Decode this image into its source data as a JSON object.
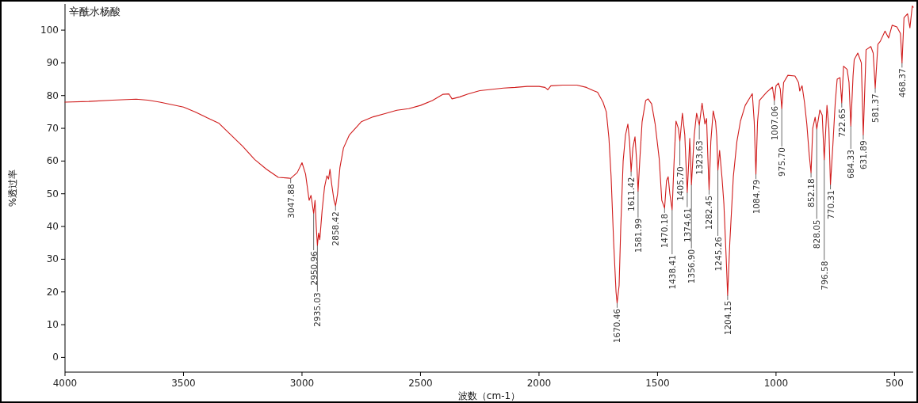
{
  "chart_data": {
    "type": "line",
    "title": "辛酰水杨酸",
    "xlabel": "波数（cm-1）",
    "ylabel": "%透过率",
    "color": "#d01c1c",
    "xlim": [
      4000,
      421
    ],
    "ylim": [
      -4.5,
      108
    ],
    "xticks": [
      4000,
      3500,
      3000,
      2500,
      2000,
      1500,
      1000,
      500
    ],
    "yticks": [
      0,
      10,
      20,
      30,
      40,
      50,
      60,
      70,
      80,
      90,
      100
    ],
    "x": [
      4000,
      3900,
      3800,
      3700,
      3650,
      3600,
      3500,
      3450,
      3400,
      3350,
      3300,
      3250,
      3200,
      3150,
      3100,
      3060,
      3047.88,
      3020,
      3000,
      2985,
      2970,
      2962,
      2955,
      2950.96,
      2945,
      2940,
      2935.03,
      2930,
      2925,
      2915,
      2905,
      2895,
      2888,
      2882,
      2875,
      2865,
      2858.42,
      2850,
      2840,
      2825,
      2800,
      2750,
      2700,
      2650,
      2600,
      2550,
      2500,
      2450,
      2405,
      2380,
      2367,
      2334,
      2300,
      2250,
      2211,
      2150,
      2100,
      2050,
      2000,
      1975,
      1963,
      1950,
      1900,
      1840,
      1800,
      1770,
      1753,
      1730,
      1716,
      1705,
      1696,
      1685,
      1675,
      1670.46,
      1662,
      1655,
      1645,
      1635,
      1625,
      1618,
      1611.42,
      1604,
      1595,
      1588,
      1581.99,
      1575,
      1565,
      1550,
      1540,
      1525,
      1510,
      1493,
      1482,
      1470.18,
      1462,
      1455,
      1448,
      1438.41,
      1430,
      1422,
      1412,
      1405.7,
      1395,
      1385,
      1374.61,
      1368,
      1364,
      1360,
      1356.9,
      1345,
      1335,
      1323.63,
      1312,
      1300,
      1293,
      1288,
      1282.45,
      1275,
      1265,
      1255,
      1250,
      1245.26,
      1238,
      1228,
      1220,
      1210,
      1204.15,
      1195,
      1180,
      1165,
      1150,
      1130,
      1110,
      1100,
      1092,
      1084.79,
      1078,
      1070,
      1040,
      1015,
      1007.06,
      1000,
      990,
      982,
      975.7,
      968,
      950,
      920,
      905,
      900,
      890,
      880,
      870,
      860,
      852.18,
      845,
      835,
      828.05,
      815,
      805,
      796.58,
      785,
      777,
      770.31,
      760,
      750,
      742,
      730,
      722.65,
      715,
      700,
      692,
      684.33,
      675,
      670,
      655,
      640,
      631.89,
      620,
      600,
      590,
      581.37,
      570,
      560,
      540,
      525,
      510,
      490,
      475,
      468.37,
      460,
      445,
      435,
      425,
      421
    ],
    "values": [
      78.0,
      78.2,
      78.6,
      78.9,
      78.6,
      78.0,
      76.5,
      75,
      73.2,
      71.5,
      68,
      64.5,
      60.5,
      57.5,
      55,
      54.8,
      54.7,
      56.5,
      59.5,
      56,
      48,
      49.5,
      46,
      44,
      48,
      40,
      34.2,
      38,
      36,
      45,
      52,
      55.5,
      54.5,
      57.5,
      53,
      48,
      46.3,
      50,
      58,
      64,
      68,
      72,
      73.5,
      74.5,
      75.5,
      76,
      77,
      78.5,
      80.4,
      80.5,
      79,
      79.6,
      80.5,
      81.5,
      81.8,
      82.3,
      82.5,
      82.8,
      82.8,
      82.5,
      81.8,
      83,
      83.2,
      83.2,
      82.5,
      81.5,
      81,
      78,
      75,
      67,
      55.5,
      35,
      20,
      16.6,
      22,
      40,
      60,
      68,
      71.3,
      66,
      56.8,
      64,
      67.4,
      60,
      50.8,
      60,
      72,
      78.5,
      79,
      77.5,
      71.3,
      60.8,
      48,
      45.6,
      54,
      55.2,
      50,
      45.1,
      60,
      72.2,
      70,
      66.1,
      74.6,
      68,
      50.4,
      60,
      66.9,
      60,
      52.8,
      68,
      74.6,
      71,
      77.7,
      71.3,
      73,
      62,
      51.2,
      66,
      75.3,
      72,
      67.4,
      57.2,
      63.2,
      55,
      47,
      30,
      19,
      35,
      55.3,
      66,
      72.2,
      77,
      79.4,
      80.6,
      72,
      56,
      72,
      78.5,
      81,
      82.6,
      78.5,
      83,
      83.8,
      82,
      76,
      84,
      86.2,
      86,
      84,
      81.4,
      83,
      78,
      71.3,
      62,
      56.4,
      70,
      73.4,
      69.8,
      75.6,
      74,
      60.4,
      77,
      70,
      52.8,
      65,
      78,
      85,
      85.5,
      77.8,
      89,
      88,
      84,
      70.7,
      86,
      91,
      93,
      90,
      68,
      94,
      95,
      93,
      82.3,
      95.7,
      96.6,
      99.7,
      97.6,
      101.5,
      101,
      99,
      90,
      103.8,
      105,
      100.7,
      107.4,
      107
    ],
    "annotations": [
      {
        "text": "3047.88",
        "x": 3047.88,
        "y": 54.7
      },
      {
        "text": "2950.96",
        "x": 2950.96,
        "y": 44
      },
      {
        "text": "2935.03",
        "x": 2935.03,
        "y": 34.2
      },
      {
        "text": "2858.42",
        "x": 2858.42,
        "y": 46.3
      },
      {
        "text": "1670.46",
        "x": 1670.46,
        "y": 16.6
      },
      {
        "text": "1611.42",
        "x": 1611.42,
        "y": 56.8
      },
      {
        "text": "1581.99",
        "x": 1581.99,
        "y": 50.8
      },
      {
        "text": "1470.18",
        "x": 1470.18,
        "y": 45.6
      },
      {
        "text": "1438.41",
        "x": 1438.41,
        "y": 45.1
      },
      {
        "text": "1405.70",
        "x": 1405.7,
        "y": 66.1
      },
      {
        "text": "1374.61",
        "x": 1374.61,
        "y": 50.4
      },
      {
        "text": "1356.90",
        "x": 1356.9,
        "y": 52.8
      },
      {
        "text": "1323.63",
        "x": 1323.63,
        "y": 71
      },
      {
        "text": "1282.45",
        "x": 1282.45,
        "y": 51.2
      },
      {
        "text": "1245.26",
        "x": 1245.26,
        "y": 57.2
      },
      {
        "text": "1204.15",
        "x": 1204.15,
        "y": 19
      },
      {
        "text": "1084.79",
        "x": 1084.79,
        "y": 56
      },
      {
        "text": "1007.06",
        "x": 1007.06,
        "y": 78.5
      },
      {
        "text": "975.70",
        "x": 975.7,
        "y": 76
      },
      {
        "text": "852.18",
        "x": 852.18,
        "y": 56.4
      },
      {
        "text": "828.05",
        "x": 828.05,
        "y": 69.8
      },
      {
        "text": "796.58",
        "x": 796.58,
        "y": 60.4
      },
      {
        "text": "770.31",
        "x": 770.31,
        "y": 52.8
      },
      {
        "text": "722.65",
        "x": 722.65,
        "y": 77.8
      },
      {
        "text": "684.33",
        "x": 684.33,
        "y": 70.7
      },
      {
        "text": "631.89",
        "x": 631.89,
        "y": 68
      },
      {
        "text": "581.37",
        "x": 581.37,
        "y": 82.3
      },
      {
        "text": "468.37",
        "x": 468.37,
        "y": 90
      }
    ]
  }
}
